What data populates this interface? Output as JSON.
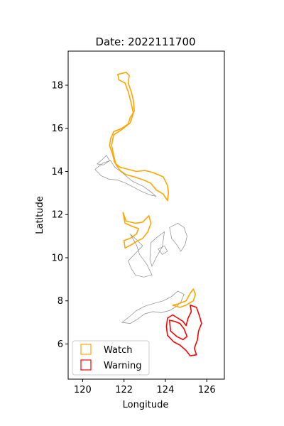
{
  "chart_data": {
    "type": "map-outline",
    "title": "Date: 2022111700",
    "xlabel": "Longitude",
    "ylabel": "Latitude",
    "xlim": [
      119.3,
      126.85
    ],
    "ylim": [
      4.37,
      19.58
    ],
    "x_ticks": [
      120,
      122,
      124,
      126
    ],
    "y_ticks": [
      6,
      8,
      10,
      12,
      14,
      16,
      18
    ],
    "grid": false,
    "legend_position": "lower-left",
    "series": [
      {
        "name": "Watch",
        "color": "#FFA500",
        "polygons": [
          [
            [
              121.7,
              18.5
            ],
            [
              122.1,
              18.6
            ],
            [
              122.25,
              18.45
            ],
            [
              122.2,
              18.1
            ],
            [
              122.35,
              17.7
            ],
            [
              122.45,
              17.3
            ],
            [
              122.5,
              16.8
            ],
            [
              122.3,
              16.5
            ],
            [
              122.2,
              16.2
            ],
            [
              121.9,
              16.0
            ],
            [
              121.5,
              15.85
            ],
            [
              121.35,
              15.5
            ],
            [
              121.3,
              15.2
            ],
            [
              121.45,
              14.8
            ],
            [
              121.55,
              14.4
            ],
            [
              121.8,
              14.2
            ],
            [
              122.2,
              14.1
            ],
            [
              122.6,
              14.0
            ],
            [
              123.0,
              14.05
            ],
            [
              123.4,
              13.95
            ],
            [
              123.9,
              13.75
            ],
            [
              124.1,
              13.35
            ],
            [
              124.15,
              13.0
            ],
            [
              124.1,
              12.65
            ],
            [
              123.9,
              12.95
            ],
            [
              123.55,
              13.15
            ],
            [
              123.3,
              13.45
            ],
            [
              122.95,
              13.6
            ],
            [
              122.5,
              13.75
            ],
            [
              122.1,
              13.85
            ],
            [
              121.8,
              14.05
            ],
            [
              121.6,
              14.35
            ],
            [
              121.5,
              14.75
            ],
            [
              121.4,
              15.2
            ],
            [
              121.5,
              15.7
            ],
            [
              121.9,
              15.95
            ],
            [
              122.3,
              16.25
            ],
            [
              122.45,
              16.7
            ],
            [
              122.35,
              17.15
            ],
            [
              122.2,
              17.7
            ],
            [
              122.05,
              18.1
            ],
            [
              121.75,
              18.25
            ],
            [
              121.7,
              18.5
            ]
          ],
          [
            [
              121.95,
              12.1
            ],
            [
              122.1,
              11.7
            ],
            [
              122.55,
              11.6
            ],
            [
              122.9,
              11.65
            ],
            [
              123.2,
              11.95
            ],
            [
              123.3,
              11.6
            ],
            [
              123.15,
              11.2
            ],
            [
              122.9,
              10.9
            ],
            [
              122.6,
              10.75
            ],
            [
              122.35,
              10.6
            ],
            [
              122.05,
              10.45
            ],
            [
              122.0,
              10.8
            ],
            [
              122.3,
              10.9
            ],
            [
              122.6,
              11.1
            ],
            [
              122.7,
              11.35
            ],
            [
              122.4,
              11.45
            ],
            [
              122.05,
              11.6
            ],
            [
              121.95,
              12.1
            ]
          ],
          [
            [
              124.35,
              7.8
            ],
            [
              124.6,
              7.85
            ],
            [
              125.0,
              8.0
            ],
            [
              125.2,
              8.35
            ],
            [
              125.35,
              8.55
            ],
            [
              125.45,
              8.3
            ],
            [
              125.35,
              8.0
            ],
            [
              125.0,
              7.8
            ],
            [
              124.7,
              7.7
            ],
            [
              124.35,
              7.8
            ]
          ]
        ]
      },
      {
        "name": "Warning",
        "color": "#FF0000",
        "polygons": [
          [
            [
              125.2,
              7.8
            ],
            [
              125.5,
              7.7
            ],
            [
              125.65,
              7.3
            ],
            [
              125.75,
              6.95
            ],
            [
              125.6,
              6.6
            ],
            [
              125.55,
              6.2
            ],
            [
              125.4,
              5.8
            ],
            [
              125.5,
              5.5
            ],
            [
              125.2,
              5.45
            ],
            [
              125.0,
              5.7
            ],
            [
              124.7,
              5.95
            ],
            [
              124.4,
              6.1
            ],
            [
              124.1,
              6.4
            ],
            [
              124.05,
              6.8
            ],
            [
              124.1,
              7.2
            ],
            [
              124.35,
              7.35
            ],
            [
              124.6,
              7.2
            ],
            [
              124.85,
              7.05
            ],
            [
              125.0,
              6.85
            ],
            [
              125.1,
              7.2
            ],
            [
              125.25,
              7.5
            ],
            [
              125.2,
              7.8
            ]
          ],
          [
            [
              124.2,
              7.1
            ],
            [
              124.25,
              6.6
            ],
            [
              124.55,
              6.35
            ],
            [
              124.85,
              6.2
            ],
            [
              125.05,
              6.35
            ],
            [
              124.9,
              6.7
            ],
            [
              124.7,
              6.95
            ],
            [
              124.45,
              7.05
            ],
            [
              124.2,
              7.1
            ]
          ]
        ]
      }
    ],
    "basemap": {
      "color": "#888888",
      "polygons": [
        [
          [
            120.6,
            14.1
          ],
          [
            121.0,
            14.4
          ],
          [
            121.35,
            14.5
          ],
          [
            121.55,
            14.2
          ],
          [
            121.9,
            13.95
          ],
          [
            122.4,
            13.55
          ],
          [
            122.95,
            13.3
          ],
          [
            123.3,
            13.05
          ],
          [
            123.55,
            12.85
          ],
          [
            123.3,
            12.9
          ],
          [
            122.9,
            13.05
          ],
          [
            122.5,
            13.25
          ],
          [
            122.1,
            13.45
          ],
          [
            121.7,
            13.6
          ],
          [
            121.25,
            13.65
          ],
          [
            120.9,
            13.8
          ],
          [
            120.6,
            14.1
          ]
        ],
        [
          [
            120.7,
            14.35
          ],
          [
            120.95,
            14.55
          ],
          [
            121.15,
            14.75
          ],
          [
            121.3,
            14.5
          ],
          [
            121.0,
            14.3
          ],
          [
            120.7,
            14.35
          ]
        ],
        [
          [
            122.3,
            11.1
          ],
          [
            122.65,
            10.8
          ],
          [
            122.9,
            10.55
          ],
          [
            122.55,
            10.2
          ],
          [
            122.2,
            9.85
          ],
          [
            122.35,
            9.5
          ],
          [
            122.55,
            9.2
          ],
          [
            122.95,
            9.1
          ],
          [
            123.35,
            9.2
          ],
          [
            123.1,
            9.7
          ],
          [
            122.75,
            10.15
          ],
          [
            122.6,
            10.6
          ],
          [
            122.3,
            11.1
          ]
        ],
        [
          [
            123.3,
            10.7
          ],
          [
            123.6,
            10.95
          ],
          [
            123.95,
            11.2
          ],
          [
            123.85,
            10.5
          ],
          [
            123.55,
            10.0
          ],
          [
            123.35,
            9.6
          ],
          [
            123.25,
            9.9
          ],
          [
            123.3,
            10.7
          ]
        ],
        [
          [
            124.2,
            11.4
          ],
          [
            124.6,
            11.6
          ],
          [
            124.9,
            11.4
          ],
          [
            125.05,
            11.0
          ],
          [
            124.95,
            10.6
          ],
          [
            124.75,
            10.3
          ],
          [
            124.55,
            10.6
          ],
          [
            124.3,
            10.9
          ],
          [
            124.2,
            11.4
          ]
        ],
        [
          [
            123.65,
            10.4
          ],
          [
            123.95,
            10.55
          ],
          [
            124.1,
            10.3
          ],
          [
            123.85,
            10.15
          ],
          [
            123.65,
            10.4
          ]
        ],
        [
          [
            121.9,
            7.0
          ],
          [
            122.3,
            7.3
          ],
          [
            122.6,
            7.55
          ],
          [
            123.0,
            7.75
          ],
          [
            123.5,
            7.9
          ],
          [
            123.9,
            8.0
          ],
          [
            124.3,
            8.2
          ],
          [
            124.6,
            8.45
          ],
          [
            124.9,
            8.3
          ],
          [
            124.75,
            7.95
          ],
          [
            124.55,
            7.75
          ],
          [
            124.2,
            7.55
          ],
          [
            123.8,
            7.45
          ],
          [
            123.4,
            7.5
          ],
          [
            123.0,
            7.4
          ],
          [
            122.65,
            7.15
          ],
          [
            122.3,
            6.95
          ],
          [
            121.9,
            7.0
          ]
        ]
      ]
    }
  }
}
